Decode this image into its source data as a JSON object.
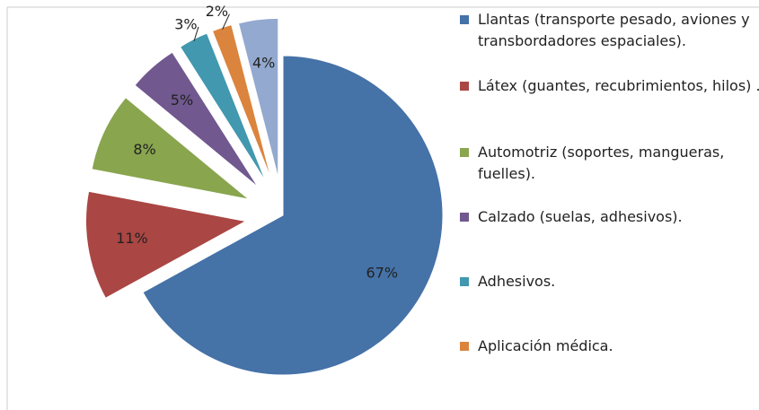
{
  "chart_data": {
    "type": "pie",
    "categories": [
      "Llantas (transporte pesado, aviones y transbordadores espaciales).",
      "Látex (guantes, recubrimientos, hilos) .",
      "Automotriz (soportes, mangueras, fuelles).",
      "Calzado (suelas, adhesivos).",
      "Adhesivos.",
      "Aplicación médica.",
      null
    ],
    "values": [
      67,
      11,
      8,
      5,
      3,
      2,
      4
    ],
    "value_labels": [
      "67%",
      "11%",
      "8%",
      "5%",
      "3%",
      "2%",
      "4%"
    ],
    "colors": [
      "#4572a7",
      "#aa4643",
      "#89a54e",
      "#71588f",
      "#4198af",
      "#db843d",
      "#93a9cf"
    ],
    "legend": "right"
  }
}
